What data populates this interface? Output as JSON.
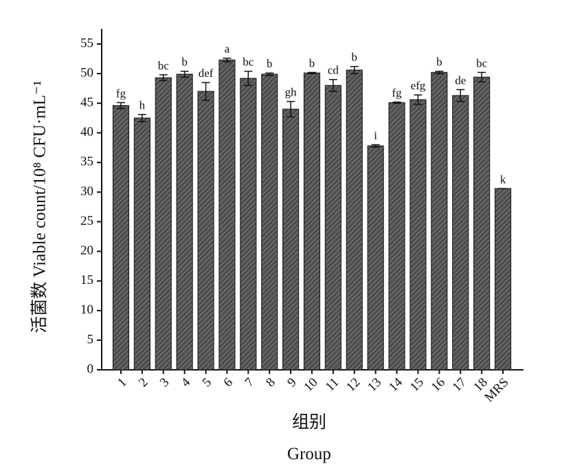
{
  "chart_data": {
    "type": "bar",
    "ylabel": "活菌数 Viable count/10⁸ CFU·mL⁻¹",
    "xlabel": "组别",
    "xlabel_en": "Group",
    "categories": [
      "1",
      "2",
      "3",
      "4",
      "5",
      "6",
      "7",
      "8",
      "9",
      "10",
      "11",
      "12",
      "13",
      "14",
      "15",
      "16",
      "17",
      "18",
      "MRS"
    ],
    "values": [
      44.6,
      42.5,
      49.3,
      49.9,
      47.0,
      52.3,
      49.2,
      49.9,
      44.0,
      50.1,
      48.0,
      50.6,
      37.8,
      45.1,
      45.6,
      50.2,
      46.3,
      49.4,
      30.6
    ],
    "errors": [
      0.5,
      0.6,
      0.5,
      0.5,
      1.5,
      0.3,
      1.2,
      0.2,
      1.3,
      0.1,
      1.0,
      0.6,
      0.2,
      0.1,
      0.8,
      0.2,
      1.0,
      0.8,
      0
    ],
    "letters": [
      "fg",
      "h",
      "bc",
      "b",
      "def",
      "a",
      "bc",
      "b",
      "gh",
      "b",
      "cd",
      "b",
      "i",
      "fg",
      "efg",
      "b",
      "de",
      "bc",
      "k"
    ],
    "color": "#4d4d4d",
    "ylim": [
      0,
      55
    ],
    "yticks": [
      0,
      5,
      10,
      15,
      20,
      25,
      30,
      35,
      40,
      45,
      50,
      55
    ]
  }
}
